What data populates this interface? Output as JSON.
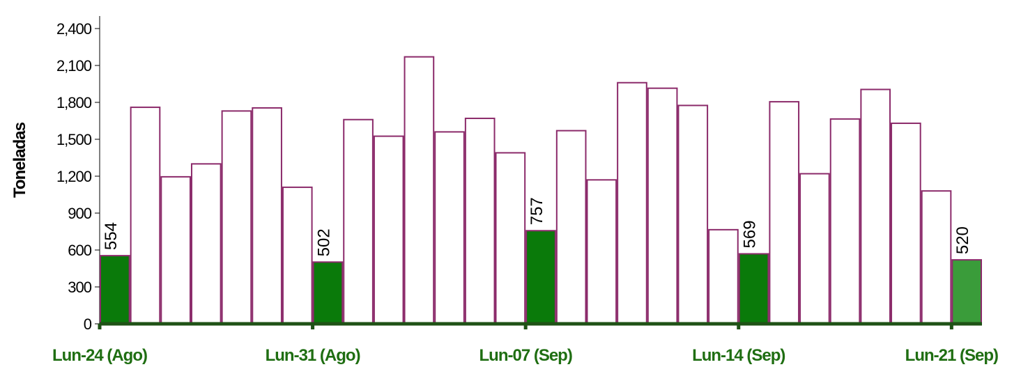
{
  "chart_data": {
    "type": "bar",
    "ylabel": "Toneladas",
    "xlabel": "",
    "ylim": [
      0,
      2400
    ],
    "yticks": [
      0,
      300,
      600,
      900,
      1200,
      1500,
      1800,
      2100,
      2400
    ],
    "ytick_labels": [
      "0",
      "300",
      "600",
      "900",
      "1,200",
      "1,500",
      "1,800",
      "2,100",
      "2,400"
    ],
    "x_tick_labels": [
      "Lun-24 (Ago)",
      "Lun-31 (Ago)",
      "Lun-07 (Sep)",
      "Lun-14 (Sep)",
      "Lun-21 (Sep)"
    ],
    "x_tick_bar_index": [
      0,
      7,
      14,
      21,
      28
    ],
    "values": [
      554,
      1760,
      1195,
      1300,
      1730,
      1755,
      1110,
      502,
      1660,
      1525,
      2170,
      1560,
      1670,
      1390,
      757,
      1570,
      1170,
      1960,
      1915,
      1775,
      765,
      569,
      1805,
      1220,
      1665,
      1905,
      1630,
      1080,
      520
    ],
    "highlighted_bars": [
      0,
      7,
      14,
      21,
      28
    ],
    "data_labels": [
      {
        "bar": 0,
        "text": "554"
      },
      {
        "bar": 7,
        "text": "502"
      },
      {
        "bar": 14,
        "text": "757"
      },
      {
        "bar": 21,
        "text": "569"
      },
      {
        "bar": 28,
        "text": "520"
      }
    ],
    "grid": false,
    "colors": {
      "bar_outline": "#8b2a6a",
      "bar_fill": "#ffffff",
      "highlight_fill": "#0a7a0a",
      "last_highlight_fill": "#3a9c3a",
      "axis_line": "#1f5216",
      "x_tick_text": "#1f6e12"
    }
  }
}
